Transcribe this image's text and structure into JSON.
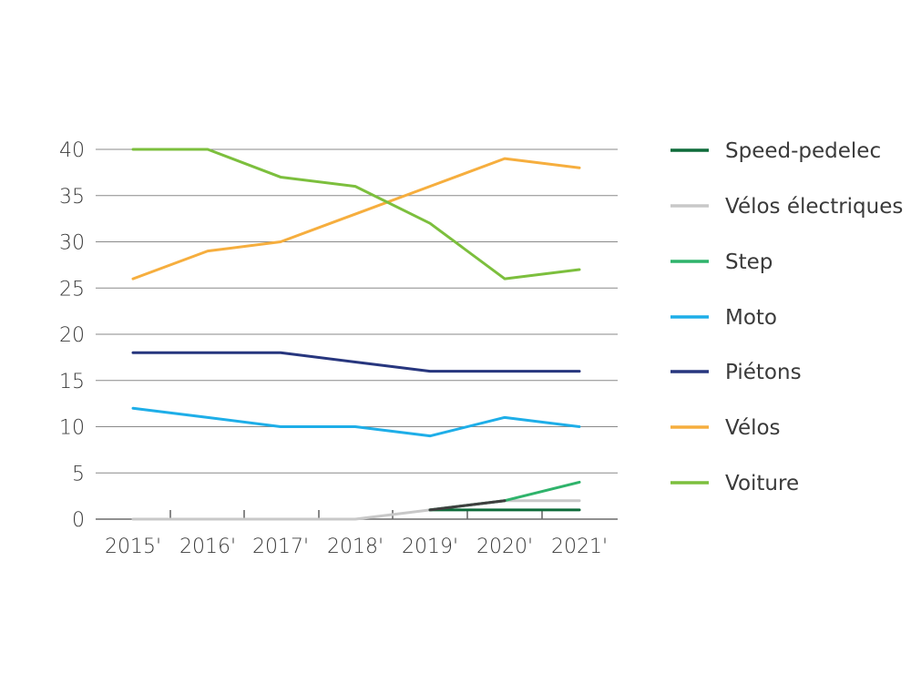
{
  "chart_data": {
    "type": "line",
    "title": "",
    "xlabel": "",
    "ylabel": "",
    "categories": [
      "2015'",
      "2016'",
      "2017'",
      "2018'",
      "2019'",
      "2020'",
      "2021'"
    ],
    "ylim": [
      0,
      40
    ],
    "yticks": [
      "0",
      "5",
      "10",
      "15",
      "20",
      "25",
      "30",
      "35",
      "40"
    ],
    "grid": true,
    "legend_position": "right",
    "series": [
      {
        "name": "Speed-pedelec",
        "color": "#0e6b3a",
        "values": [
          null,
          null,
          null,
          null,
          1,
          1,
          1
        ]
      },
      {
        "name": "Vélos électriques",
        "color": "#c8c8c8",
        "values": [
          0,
          0,
          0,
          0,
          1,
          2,
          2
        ]
      },
      {
        "name": "Step",
        "color": "#2fb36b",
        "values": [
          null,
          null,
          null,
          null,
          1,
          2,
          4
        ]
      },
      {
        "name": "Moto",
        "color": "#1eaee8",
        "values": [
          12,
          11,
          10,
          10,
          9,
          11,
          10
        ]
      },
      {
        "name": "Piétons",
        "color": "#27367e",
        "values": [
          18,
          18,
          18,
          17,
          16,
          16,
          16
        ]
      },
      {
        "name": "Vélos",
        "color": "#f6ae3e",
        "values": [
          26,
          29,
          30,
          33,
          36,
          39,
          38
        ]
      },
      {
        "name": "Voiture",
        "color": "#7cbf3d",
        "values": [
          40,
          40,
          37,
          36,
          32,
          26,
          27
        ]
      }
    ]
  }
}
